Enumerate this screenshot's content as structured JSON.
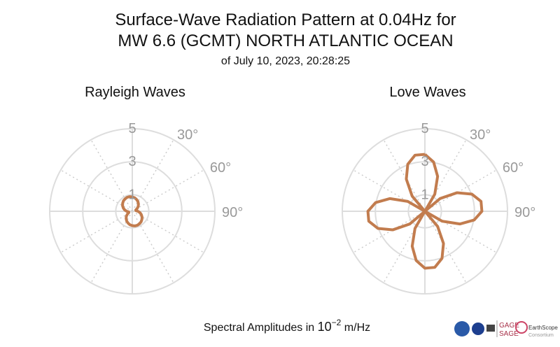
{
  "title": [
    "Surface-Wave Radiation Pattern at 0.04Hz for",
    "MW 6.6 (GCMT) NORTH ATLANTIC OCEAN"
  ],
  "subtitle": "of July 10, 2023, 20:28:25",
  "footer": {
    "text": "Spectral Amplitudes in ",
    "base": "10",
    "exponent": "−2",
    "unit": " m/Hz"
  },
  "logos": [
    "GAGE",
    "SAGE",
    "EarthScope",
    "Consortium"
  ],
  "chart_data": [
    {
      "type": "polar",
      "title": "Rayleigh Waves",
      "color": "#c27c4e",
      "rlim": [
        0,
        5
      ],
      "rticks": [
        1,
        3,
        5
      ],
      "thetaticks": [
        {
          "value": 30,
          "label": "30°"
        },
        {
          "value": 60,
          "label": "60°"
        },
        {
          "value": 90,
          "label": "90°"
        }
      ],
      "thetagrid": [
        0,
        30,
        60,
        90,
        120,
        150,
        180,
        210,
        240,
        270,
        300,
        330
      ],
      "theta": [
        0,
        10,
        20,
        30,
        40,
        50,
        60,
        70,
        80,
        90,
        100,
        110,
        120,
        130,
        140,
        150,
        160,
        170,
        180,
        190,
        200,
        210,
        220,
        230,
        240,
        250,
        260,
        270,
        280,
        290,
        300,
        310,
        320,
        330,
        340,
        350,
        360
      ],
      "r": [
        0.87,
        0.83,
        0.76,
        0.68,
        0.58,
        0.47,
        0.34,
        0.22,
        0.22,
        0.34,
        0.47,
        0.58,
        0.68,
        0.76,
        0.83,
        0.87,
        0.9,
        0.9,
        0.87,
        0.83,
        0.76,
        0.68,
        0.58,
        0.47,
        0.34,
        0.22,
        0.22,
        0.34,
        0.47,
        0.58,
        0.68,
        0.76,
        0.83,
        0.87,
        0.9,
        0.9,
        0.87
      ]
    },
    {
      "type": "polar",
      "title": "Love Waves",
      "color": "#c27c4e",
      "rlim": [
        0,
        5
      ],
      "rticks": [
        1,
        3,
        5
      ],
      "thetaticks": [
        {
          "value": 30,
          "label": "30°"
        },
        {
          "value": 60,
          "label": "60°"
        },
        {
          "value": 90,
          "label": "90°"
        }
      ],
      "thetagrid": [
        0,
        30,
        60,
        90,
        120,
        150,
        180,
        210,
        240,
        270,
        300,
        330
      ],
      "theta": [
        0,
        10,
        20,
        30,
        40,
        50,
        60,
        70,
        80,
        90,
        100,
        110,
        120,
        130,
        140,
        150,
        160,
        170,
        180,
        190,
        200,
        210,
        220,
        230,
        240,
        250,
        260,
        270,
        280,
        290,
        300,
        310,
        320,
        330,
        340,
        350,
        360
      ],
      "r": [
        3.45,
        3.03,
        2.25,
        1.2,
        0,
        1.2,
        2.25,
        3.03,
        3.45,
        3.45,
        3.03,
        2.25,
        1.2,
        0,
        1.2,
        2.25,
        3.03,
        3.45,
        3.45,
        3.03,
        2.25,
        1.2,
        0,
        1.2,
        2.25,
        3.03,
        3.45,
        3.45,
        3.03,
        2.25,
        1.2,
        0,
        1.2,
        2.25,
        3.03,
        3.45,
        3.45
      ]
    }
  ]
}
